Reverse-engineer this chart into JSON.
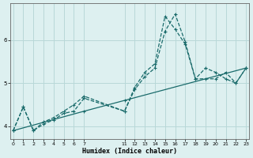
{
  "xlabel": "Humidex (Indice chaleur)",
  "background_color": "#ddf0f0",
  "grid_color": "#b8d8d8",
  "line_color": "#1a6b6b",
  "ylim": [
    3.7,
    6.85
  ],
  "xlim": [
    -0.3,
    23.3
  ],
  "yticks": [
    4,
    5,
    6
  ],
  "xticks": [
    0,
    1,
    2,
    3,
    4,
    5,
    6,
    7,
    11,
    12,
    13,
    14,
    15,
    16,
    17,
    18,
    19,
    20,
    21,
    22,
    23
  ],
  "series": [
    {
      "x": [
        0,
        1,
        2,
        3,
        4,
        5,
        6,
        7,
        11,
        12,
        13,
        14,
        15,
        16,
        17,
        18,
        19,
        20,
        21,
        22,
        23
      ],
      "y": [
        3.9,
        4.45,
        3.9,
        4.05,
        4.15,
        4.3,
        4.35,
        4.65,
        4.35,
        4.9,
        5.25,
        5.45,
        6.55,
        6.25,
        5.9,
        5.1,
        5.35,
        5.25,
        5.1,
        5.0,
        5.35
      ],
      "linestyle": "--"
    },
    {
      "x": [
        0,
        1,
        2,
        3,
        4,
        5,
        6,
        7,
        11,
        12,
        13,
        14,
        15,
        16,
        17,
        18,
        19,
        20,
        21,
        22,
        23
      ],
      "y": [
        3.9,
        4.45,
        3.9,
        4.1,
        4.2,
        4.35,
        4.5,
        4.7,
        4.35,
        4.85,
        5.15,
        5.35,
        6.2,
        6.6,
        5.95,
        5.1,
        5.1,
        5.1,
        5.25,
        5.0,
        5.35
      ],
      "linestyle": "--"
    },
    {
      "x": [
        0,
        7,
        11,
        23
      ],
      "y": [
        3.9,
        4.35,
        4.6,
        5.35
      ],
      "linestyle": "-"
    }
  ]
}
